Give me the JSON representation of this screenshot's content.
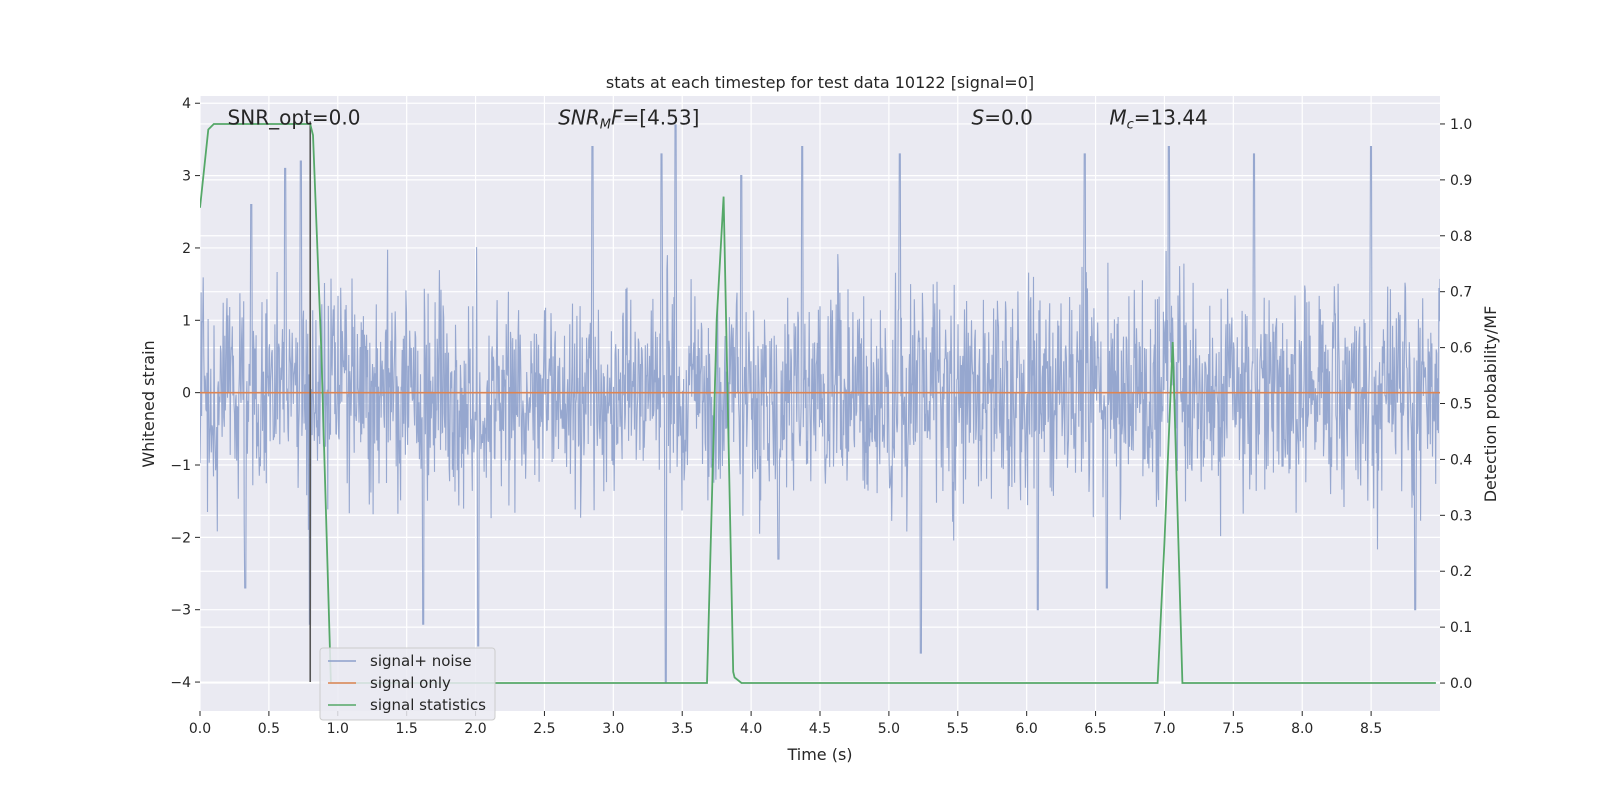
{
  "chart_data": {
    "type": "line",
    "title": "stats at each timestep for test data 10122 [signal=0]",
    "xlabel": "Time (s)",
    "ylabel_left": "Whitened strain",
    "ylabel_right": "Detection probability/MF",
    "xlim": [
      0.0,
      9.0
    ],
    "ylim_left": [
      -4.4,
      4.1
    ],
    "ylim_right": [
      -0.05,
      1.05
    ],
    "x_ticks": [
      0.0,
      0.5,
      1.0,
      1.5,
      2.0,
      2.5,
      3.0,
      3.5,
      4.0,
      4.5,
      5.0,
      5.5,
      6.0,
      6.5,
      7.0,
      7.5,
      8.0,
      8.5
    ],
    "x_tick_labels": [
      "0.0",
      "0.5",
      "1.0",
      "1.5",
      "2.0",
      "2.5",
      "3.0",
      "3.5",
      "4.0",
      "4.5",
      "5.0",
      "5.5",
      "6.0",
      "6.5",
      "7.0",
      "7.5",
      "8.0",
      "8.5"
    ],
    "y_left_ticks": [
      -4,
      -3,
      -2,
      -1,
      0,
      1,
      2,
      3,
      4
    ],
    "y_left_tick_labels": [
      "−4",
      "−3",
      "−2",
      "−1",
      "0",
      "1",
      "2",
      "3",
      "4"
    ],
    "y_right_ticks": [
      0.0,
      0.1,
      0.2,
      0.3,
      0.4,
      0.5,
      0.6,
      0.7,
      0.8,
      0.9,
      1.0
    ],
    "y_right_tick_labels": [
      "0.0",
      "0.1",
      "0.2",
      "0.3",
      "0.4",
      "0.5",
      "0.6",
      "0.7",
      "0.8",
      "0.9",
      "1.0"
    ],
    "grid": true,
    "legend_position": "lower-left",
    "series": [
      {
        "name": "signal+ noise",
        "axis": "left",
        "color": "#8da0cb",
        "description": "whitened strain noise, dense; typical band about ±1.7, peaks to about 3.7 and −4.0",
        "x_range": [
          0.0,
          9.0
        ],
        "typical_abs": 1.7,
        "peaks": [
          {
            "x": 0.37,
            "y": 2.6
          },
          {
            "x": 0.62,
            "y": 3.1
          },
          {
            "x": 0.73,
            "y": 3.2
          },
          {
            "x": 0.8,
            "y": -3.2
          },
          {
            "x": 0.33,
            "y": -2.7
          },
          {
            "x": 1.62,
            "y": -3.2
          },
          {
            "x": 2.02,
            "y": -3.5
          },
          {
            "x": 2.85,
            "y": 3.4
          },
          {
            "x": 3.35,
            "y": 3.3
          },
          {
            "x": 3.45,
            "y": 3.7
          },
          {
            "x": 3.38,
            "y": -4.0
          },
          {
            "x": 3.93,
            "y": 3.0
          },
          {
            "x": 4.37,
            "y": 3.4
          },
          {
            "x": 5.08,
            "y": 3.3
          },
          {
            "x": 5.23,
            "y": -3.6
          },
          {
            "x": 6.08,
            "y": -3.0
          },
          {
            "x": 6.42,
            "y": 3.3
          },
          {
            "x": 7.03,
            "y": 3.4
          },
          {
            "x": 7.65,
            "y": 3.3
          },
          {
            "x": 8.5,
            "y": 3.4
          },
          {
            "x": 8.82,
            "y": -3.0
          },
          {
            "x": 6.58,
            "y": -2.7
          },
          {
            "x": 4.2,
            "y": -2.3
          }
        ]
      },
      {
        "name": "signal only",
        "axis": "left",
        "color": "#dd8452",
        "x": [
          0.0,
          9.0
        ],
        "y": [
          0.0,
          0.0
        ]
      },
      {
        "name": "signal statistics",
        "axis": "right",
        "color": "#55a868",
        "x": [
          0.0,
          0.06,
          0.1,
          0.8,
          0.82,
          0.88,
          0.95,
          3.65,
          3.68,
          3.75,
          3.8,
          3.87,
          3.88,
          3.93,
          6.95,
          7.0,
          7.06,
          7.13,
          8.97
        ],
        "y": [
          0.85,
          0.99,
          1.0,
          1.0,
          0.98,
          0.6,
          0.0,
          0.0,
          0.0,
          0.65,
          0.87,
          0.02,
          0.01,
          0.0,
          0.0,
          0.25,
          0.61,
          0.0,
          0.0
        ]
      }
    ],
    "vertical_line": {
      "x": 0.8,
      "y_from": -4.0,
      "y_to": 3.75,
      "color": "#555555"
    },
    "annotations": [
      {
        "text_html": "SNR_opt=0.0",
        "x": 0.2
      },
      {
        "text_html": "<tspan font-style='italic'>SNR</tspan><tspan font-style='italic' font-size='13' dy='4'>M</tspan><tspan font-style='italic' dy='-4'>F</tspan>=[4.53]",
        "x": 2.6
      },
      {
        "text_html": "<tspan font-style='italic'>S</tspan>=0.0",
        "x": 5.6
      },
      {
        "text_html": "<tspan font-style='italic'>M</tspan><tspan font-style='italic' font-size='13' dy='4'>c</tspan><tspan dy='-4'>=13.44</tspan>",
        "x": 6.6
      }
    ],
    "annotation_y": 3.8
  }
}
